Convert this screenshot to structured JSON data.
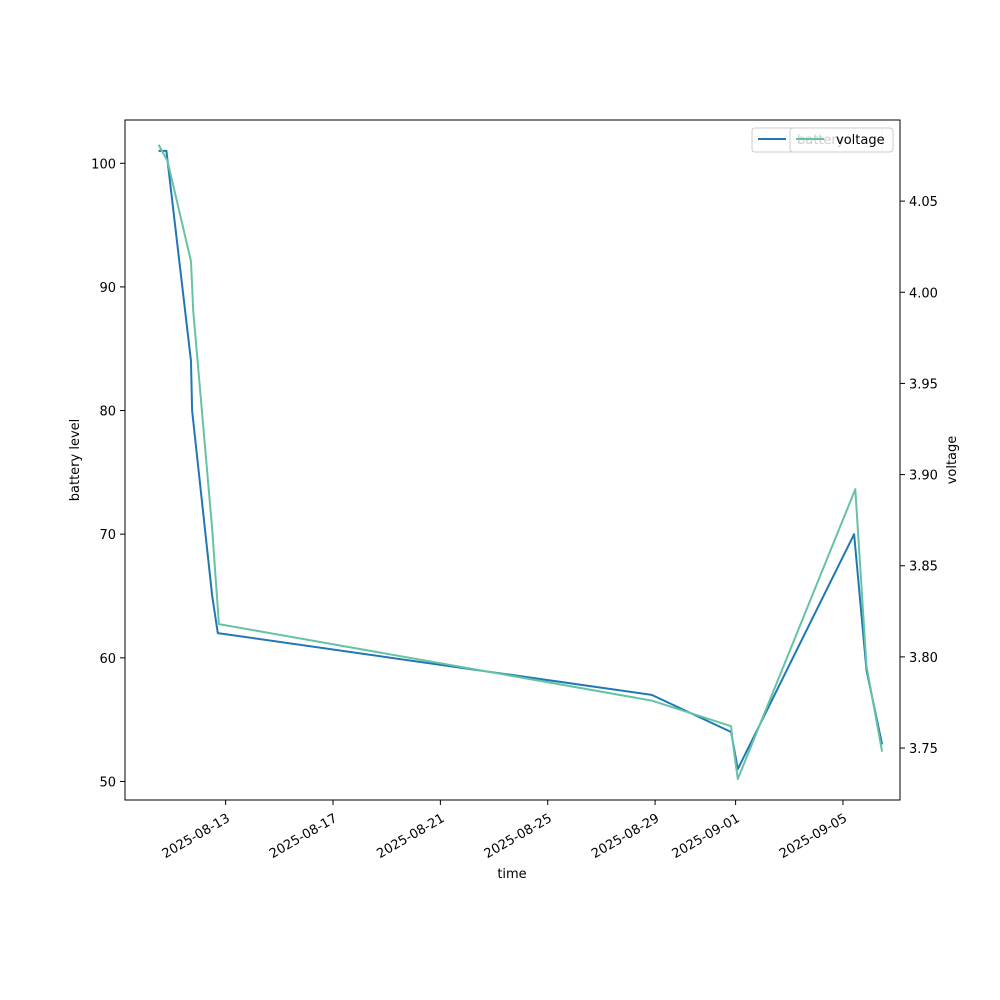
{
  "chart_data": {
    "type": "line",
    "xlabel": "time",
    "ylabel": "battery level",
    "ylabel_right": "voltage",
    "x_ticks": [
      "2025-08-13",
      "2025-08-17",
      "2025-08-21",
      "2025-08-25",
      "2025-08-29",
      "2025-09-01",
      "2025-09-05"
    ],
    "xlim": [
      "2025-08-09T06:00",
      "2025-09-07T03:00"
    ],
    "ylim_left": [
      48.5,
      103.5
    ],
    "yticks_left": [
      50,
      60,
      70,
      80,
      90,
      100
    ],
    "ylim_right": [
      3.7215,
      4.0945
    ],
    "yticks_right": [
      3.75,
      3.8,
      3.85,
      3.9,
      3.95,
      4.0,
      4.05
    ],
    "legend_placement": "upper right",
    "series": [
      {
        "name": "battery",
        "axis": "left",
        "color": "#1f77b4",
        "points": [
          [
            "2025-08-10T12:00",
            101
          ],
          [
            "2025-08-10T19:00",
            101
          ],
          [
            "2025-08-11T17:00",
            84
          ],
          [
            "2025-08-11T18:00",
            80
          ],
          [
            "2025-08-12T12:00",
            65
          ],
          [
            "2025-08-12T17:00",
            62
          ],
          [
            "2025-08-28T21:00",
            57
          ],
          [
            "2025-08-31T20:00",
            54
          ],
          [
            "2025-09-01T02:00",
            51
          ],
          [
            "2025-09-05T10:00",
            70
          ],
          [
            "2025-09-05T21:00",
            59
          ],
          [
            "2025-09-06T11:00",
            53
          ]
        ]
      },
      {
        "name": "voltage",
        "axis": "right",
        "color": "#66c2a5",
        "points": [
          [
            "2025-08-10T12:00",
            4.081
          ],
          [
            "2025-08-10T20:00",
            4.072
          ],
          [
            "2025-08-11T17:00",
            4.017
          ],
          [
            "2025-08-11T19:00",
            3.99
          ],
          [
            "2025-08-12T12:00",
            3.87
          ],
          [
            "2025-08-12T18:00",
            3.818
          ],
          [
            "2025-08-28T21:00",
            3.776
          ],
          [
            "2025-08-31T20:00",
            3.762
          ],
          [
            "2025-08-31T21:00",
            3.755
          ],
          [
            "2025-09-01T02:00",
            3.733
          ],
          [
            "2025-09-05T11:00",
            3.892
          ],
          [
            "2025-09-05T21:00",
            3.795
          ],
          [
            "2025-09-06T11:00",
            3.748
          ]
        ]
      }
    ],
    "legends": {
      "left": {
        "label": "battery",
        "color": "#1f77b4"
      },
      "right": {
        "label": "voltage",
        "color": "#66c2a5"
      }
    }
  }
}
